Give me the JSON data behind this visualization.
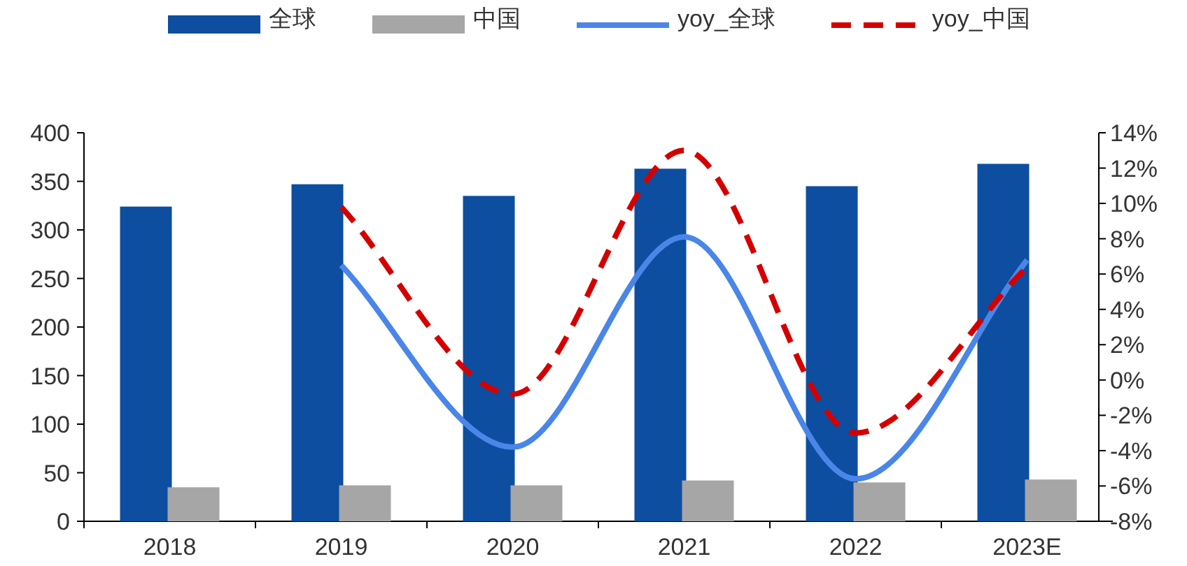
{
  "chart_data": {
    "type": "bar",
    "categories": [
      "2018",
      "2019",
      "2020",
      "2021",
      "2022",
      "2023E"
    ],
    "series": [
      {
        "name": "全球",
        "color": "#0d4ea0",
        "values": [
          324,
          347,
          335,
          363,
          345,
          368
        ]
      },
      {
        "name": "中国",
        "color": "#a6a6a6",
        "values": [
          35,
          37,
          37,
          42,
          40,
          43
        ]
      },
      {
        "name": "yoy_全球",
        "type": "line",
        "axis": "y2",
        "color": "#4a86e8",
        "line_style": "solid",
        "values": [
          null,
          6.5,
          -3.8,
          8.1,
          -5.6,
          6.8
        ]
      },
      {
        "name": "yoy_中国",
        "type": "line",
        "axis": "y2",
        "color": "#d40000",
        "line_style": "dashed",
        "values": [
          null,
          9.8,
          -0.8,
          13.0,
          -3.0,
          6.4
        ]
      }
    ],
    "ylim": [
      0,
      400
    ],
    "yticks": [
      0,
      50,
      100,
      150,
      200,
      250,
      300,
      350,
      400
    ],
    "y2lim": [
      -8,
      14
    ],
    "y2ticks": [
      {
        "value": -8,
        "label": "-8%"
      },
      {
        "value": -6,
        "label": "-6%"
      },
      {
        "value": -4,
        "label": "-4%"
      },
      {
        "value": -2,
        "label": "-2%"
      },
      {
        "value": 0,
        "label": "0%"
      },
      {
        "value": 2,
        "label": "2%"
      },
      {
        "value": 4,
        "label": "4%"
      },
      {
        "value": 6,
        "label": "6%"
      },
      {
        "value": 8,
        "label": "8%"
      },
      {
        "value": 10,
        "label": "10%"
      },
      {
        "value": 12,
        "label": "12%"
      },
      {
        "value": 14,
        "label": "14%"
      }
    ],
    "legend": "top",
    "grid": false
  }
}
